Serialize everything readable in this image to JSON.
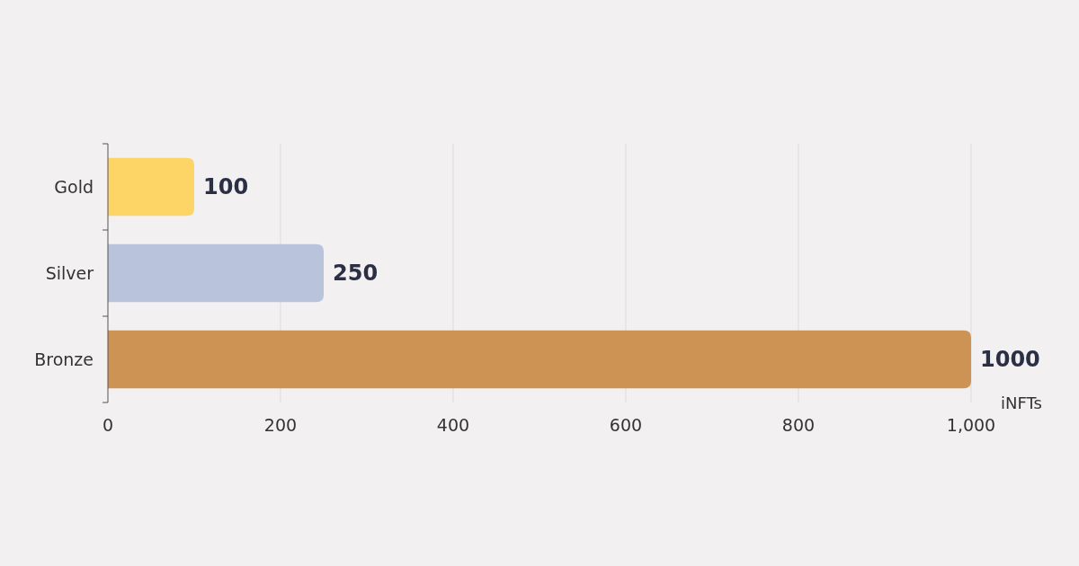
{
  "chart_data": {
    "type": "bar",
    "orientation": "horizontal",
    "categories": [
      "Gold",
      "Silver",
      "Bronze"
    ],
    "values": [
      100,
      250,
      1000
    ],
    "colors": [
      "#fdd566",
      "#b9c3dc",
      "#cd9355"
    ],
    "xlim": [
      0,
      1000
    ],
    "xticks": [
      0,
      200,
      400,
      600,
      800,
      {
        "value": 1000,
        "label": "1,000"
      }
    ],
    "xlabel": "iNFTs",
    "grid": "x",
    "data_labels": true
  }
}
